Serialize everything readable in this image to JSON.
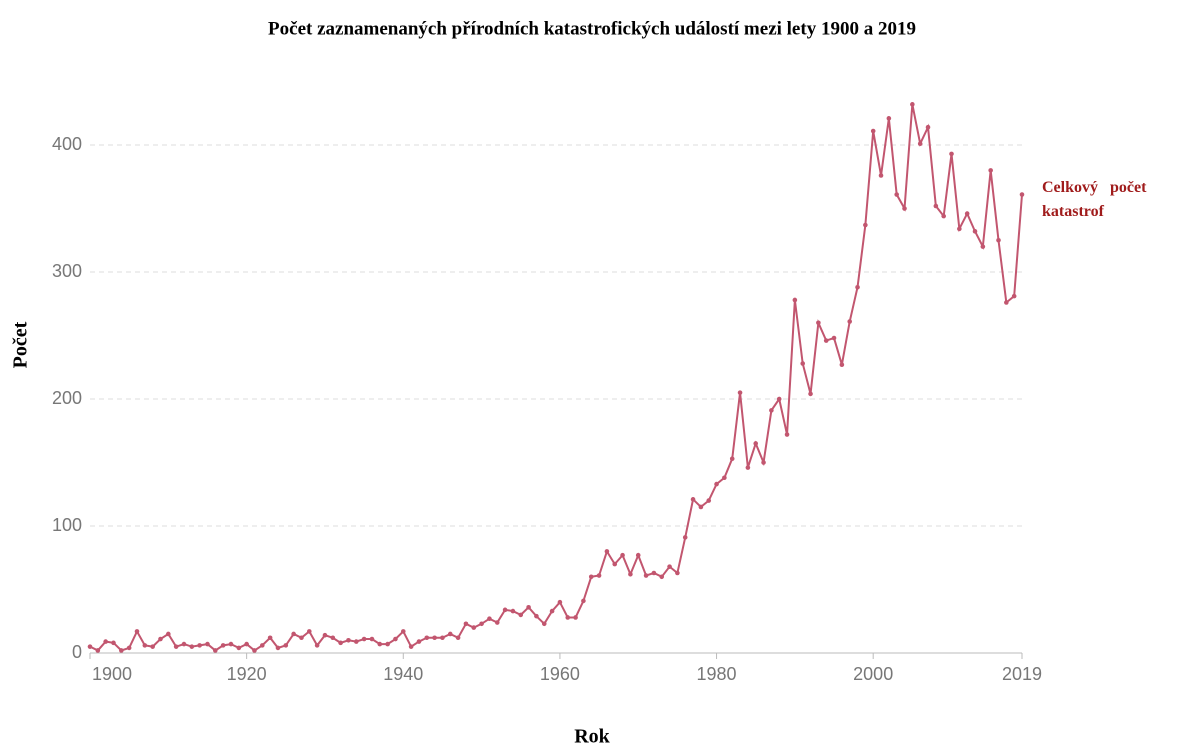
{
  "chart_data": {
    "type": "line",
    "title": "Počet zaznamenaných přírodních katastrofických událostí mezi lety 1900 a 2019",
    "xlabel": "Rok",
    "ylabel": "Počet",
    "x": [
      1900,
      1901,
      1902,
      1903,
      1904,
      1905,
      1906,
      1907,
      1908,
      1909,
      1910,
      1911,
      1912,
      1913,
      1914,
      1915,
      1916,
      1917,
      1918,
      1919,
      1920,
      1921,
      1922,
      1923,
      1924,
      1925,
      1926,
      1927,
      1928,
      1929,
      1930,
      1931,
      1932,
      1933,
      1934,
      1935,
      1936,
      1937,
      1938,
      1939,
      1940,
      1941,
      1942,
      1943,
      1944,
      1945,
      1946,
      1947,
      1948,
      1949,
      1950,
      1951,
      1952,
      1953,
      1954,
      1955,
      1956,
      1957,
      1958,
      1959,
      1960,
      1961,
      1962,
      1963,
      1964,
      1965,
      1966,
      1967,
      1968,
      1969,
      1970,
      1971,
      1972,
      1973,
      1974,
      1975,
      1976,
      1977,
      1978,
      1979,
      1980,
      1981,
      1982,
      1983,
      1984,
      1985,
      1986,
      1987,
      1988,
      1989,
      1990,
      1991,
      1992,
      1993,
      1994,
      1995,
      1996,
      1997,
      1998,
      1999,
      2000,
      2001,
      2002,
      2003,
      2004,
      2005,
      2006,
      2007,
      2008,
      2009,
      2010,
      2011,
      2012,
      2013,
      2014,
      2015,
      2016,
      2017,
      2018,
      2019
    ],
    "series": [
      {
        "name": "Celkový počet katastrof",
        "color": "#c2566f",
        "values": [
          5,
          2,
          9,
          8,
          2,
          4,
          17,
          6,
          5,
          11,
          15,
          5,
          7,
          5,
          6,
          7,
          2,
          6,
          7,
          4,
          7,
          2,
          6,
          12,
          4,
          6,
          15,
          12,
          17,
          6,
          14,
          12,
          8,
          10,
          9,
          11,
          11,
          7,
          7,
          11,
          17,
          5,
          9,
          12,
          12,
          12,
          15,
          12,
          23,
          20,
          23,
          27,
          24,
          34,
          33,
          30,
          36,
          29,
          23,
          33,
          40,
          28,
          28,
          41,
          60,
          61,
          80,
          70,
          77,
          62,
          77,
          61,
          63,
          60,
          68,
          63,
          91,
          121,
          115,
          120,
          133,
          138,
          153,
          205,
          146,
          165,
          150,
          191,
          200,
          172,
          278,
          228,
          204,
          260,
          246,
          248,
          227,
          261,
          288,
          337,
          411,
          376,
          421,
          361,
          350,
          432,
          401,
          414,
          352,
          344,
          393,
          334,
          346,
          332,
          320,
          380,
          325,
          276,
          281,
          361
        ]
      }
    ],
    "xlim": [
      1900,
      2019
    ],
    "xticks": [
      1900,
      1920,
      1940,
      1960,
      1980,
      2000,
      2019
    ],
    "ylim": [
      0,
      440
    ],
    "yticks": [
      0,
      100,
      200,
      300,
      400
    ],
    "grid": true
  }
}
